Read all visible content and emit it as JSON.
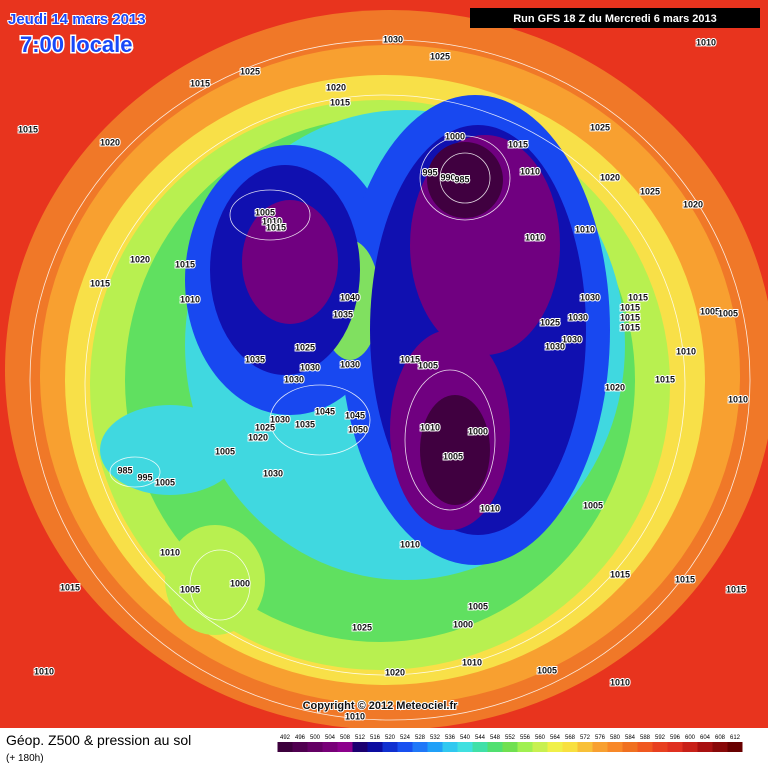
{
  "header": {
    "date": "Jeudi 14 mars 2013",
    "time": "7:00 locale",
    "run": "Run GFS 18 Z du Mercredi 6 mars 2013"
  },
  "copyright": "Copyright © 2012 Meteociel.fr",
  "footer": {
    "title": "Géop. Z500 & pression au sol",
    "subtitle": "(+ 180h)"
  },
  "legend": {
    "ticks": [
      492,
      496,
      500,
      504,
      508,
      512,
      516,
      520,
      524,
      528,
      532,
      536,
      540,
      544,
      548,
      552,
      556,
      560,
      564,
      568,
      572,
      576,
      580,
      584,
      588,
      592,
      596,
      600,
      604,
      608,
      612
    ],
    "colors": [
      "#3c003c",
      "#500050",
      "#640064",
      "#780078",
      "#8c008c",
      "#1c0070",
      "#0c0ca0",
      "#1030d0",
      "#1850f0",
      "#2078f8",
      "#20a0f8",
      "#30c8f0",
      "#40e0e0",
      "#40e0a8",
      "#50e070",
      "#70e050",
      "#a0f050",
      "#c8f050",
      "#f0f048",
      "#f8e040",
      "#f8c038",
      "#f8a030",
      "#f88828",
      "#f07020",
      "#f05820",
      "#e84020",
      "#e03020",
      "#c82018",
      "#a81010",
      "#880808",
      "#680000"
    ]
  },
  "isobar_labels": [
    1030,
    1010,
    1025,
    1025,
    1015,
    1020,
    1015,
    1015,
    1020,
    1000,
    1015,
    1025,
    1020,
    1025,
    1020,
    1010,
    995,
    990,
    985,
    1005,
    1010,
    1015,
    1010,
    1010,
    1020,
    1015,
    1015,
    1010,
    1040,
    1035,
    1030,
    1015,
    1015,
    1015,
    1015,
    1030,
    1025,
    1005,
    1005,
    1025,
    1030,
    1030,
    1010,
    1035,
    1030,
    1015,
    1005,
    1030,
    1030,
    1015,
    1020,
    1010,
    1030,
    1045,
    1025,
    1035,
    1045,
    1050,
    1020,
    1010,
    1000,
    1005,
    1005,
    985,
    995,
    1005,
    1030,
    1010,
    1005,
    1010,
    1010,
    1015,
    1005,
    1000,
    1015,
    1015,
    1015,
    1005,
    1000,
    1025,
    1010,
    1005,
    1020,
    1010,
    1010,
    1010
  ]
}
